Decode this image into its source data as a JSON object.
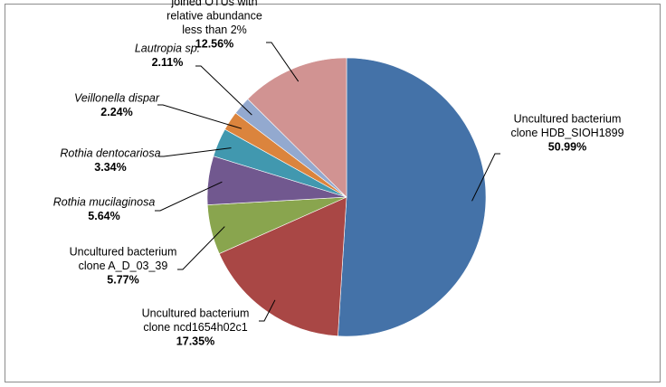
{
  "chart_data": {
    "type": "pie",
    "title": "",
    "start_angle_deg": 0,
    "direction": "clockwise",
    "legend": "none",
    "slices": [
      {
        "label_lines": [
          "Uncultured bacterium",
          "clone HDB_SIOH1899"
        ],
        "italic": false,
        "value_label": "50.99%",
        "value": 50.99,
        "color": "#4472a8"
      },
      {
        "label_lines": [
          "Uncultured bacterium",
          "clone ncd1654h02c1"
        ],
        "italic": false,
        "value_label": "17.35%",
        "value": 17.35,
        "color": "#a94745"
      },
      {
        "label_lines": [
          "Uncultured bacterium",
          "clone A_D_03_39"
        ],
        "italic": false,
        "value_label": "5.77%",
        "value": 5.77,
        "color": "#89a54e"
      },
      {
        "label_lines": [
          "Rothia mucilaginosa"
        ],
        "italic": true,
        "value_label": "5.64%",
        "value": 5.64,
        "color": "#71588f"
      },
      {
        "label_lines": [
          "Rothia dentocariosa"
        ],
        "italic": true,
        "value_label": "3.34%",
        "value": 3.34,
        "color": "#4198af"
      },
      {
        "label_lines": [
          "Veillonella dispar"
        ],
        "italic": true,
        "value_label": "2.24%",
        "value": 2.24,
        "color": "#db843d"
      },
      {
        "label_lines": [
          "Lautropia sp."
        ],
        "italic": true,
        "value_label": "2.11%",
        "value": 2.11,
        "color": "#93a9cf"
      },
      {
        "label_lines": [
          "joined OTUs with",
          "relative abundance",
          "less than 2%"
        ],
        "italic": false,
        "value_label": "12.56%",
        "value": 12.56,
        "color": "#d19392"
      }
    ]
  }
}
